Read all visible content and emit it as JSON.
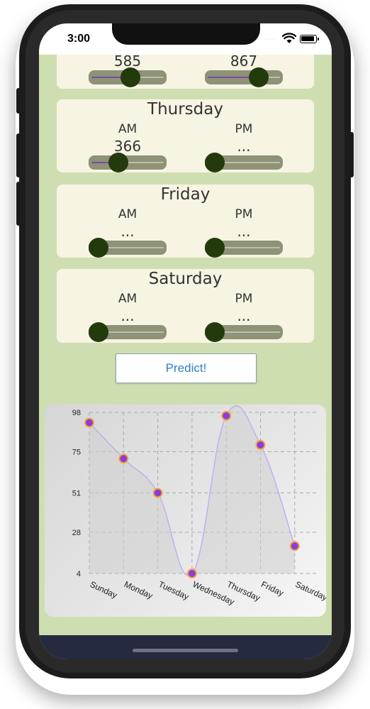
{
  "status_bar": {
    "time": "3:00",
    "signal": "····"
  },
  "days": [
    {
      "title": "",
      "am_label": "",
      "pm_label": "",
      "am_value": "585",
      "pm_value": "867",
      "am_level": 0.55,
      "pm_level": 0.75
    },
    {
      "title": "Thursday",
      "am_label": "AM",
      "pm_label": "PM",
      "am_value": "366",
      "pm_value": "...",
      "am_level": 0.34,
      "pm_level": 0
    },
    {
      "title": "Friday",
      "am_label": "AM",
      "pm_label": "PM",
      "am_value": "...",
      "pm_value": "...",
      "am_level": 0,
      "pm_level": 0
    },
    {
      "title": "Saturday",
      "am_label": "AM",
      "pm_label": "PM",
      "am_value": "...",
      "pm_value": "...",
      "am_level": 0,
      "pm_level": 0
    }
  ],
  "predict_button": {
    "label": "Predict!"
  },
  "chart_data": {
    "type": "line",
    "categories": [
      "Sunday",
      "Monday",
      "Tuesday",
      "Wednesday",
      "Thursday",
      "Friday",
      "Saturday"
    ],
    "values": [
      92,
      71,
      51,
      4,
      96,
      79,
      20
    ],
    "y_ticks": [
      "98",
      "75",
      "51",
      "28",
      "4"
    ],
    "ylim": [
      4,
      98
    ],
    "grid": true,
    "smooth": true,
    "line_color": "#c3b3ea",
    "marker_color": "#8a3ddd",
    "marker_outline": "#f5a53a",
    "area_color": "#cfcfcf"
  }
}
